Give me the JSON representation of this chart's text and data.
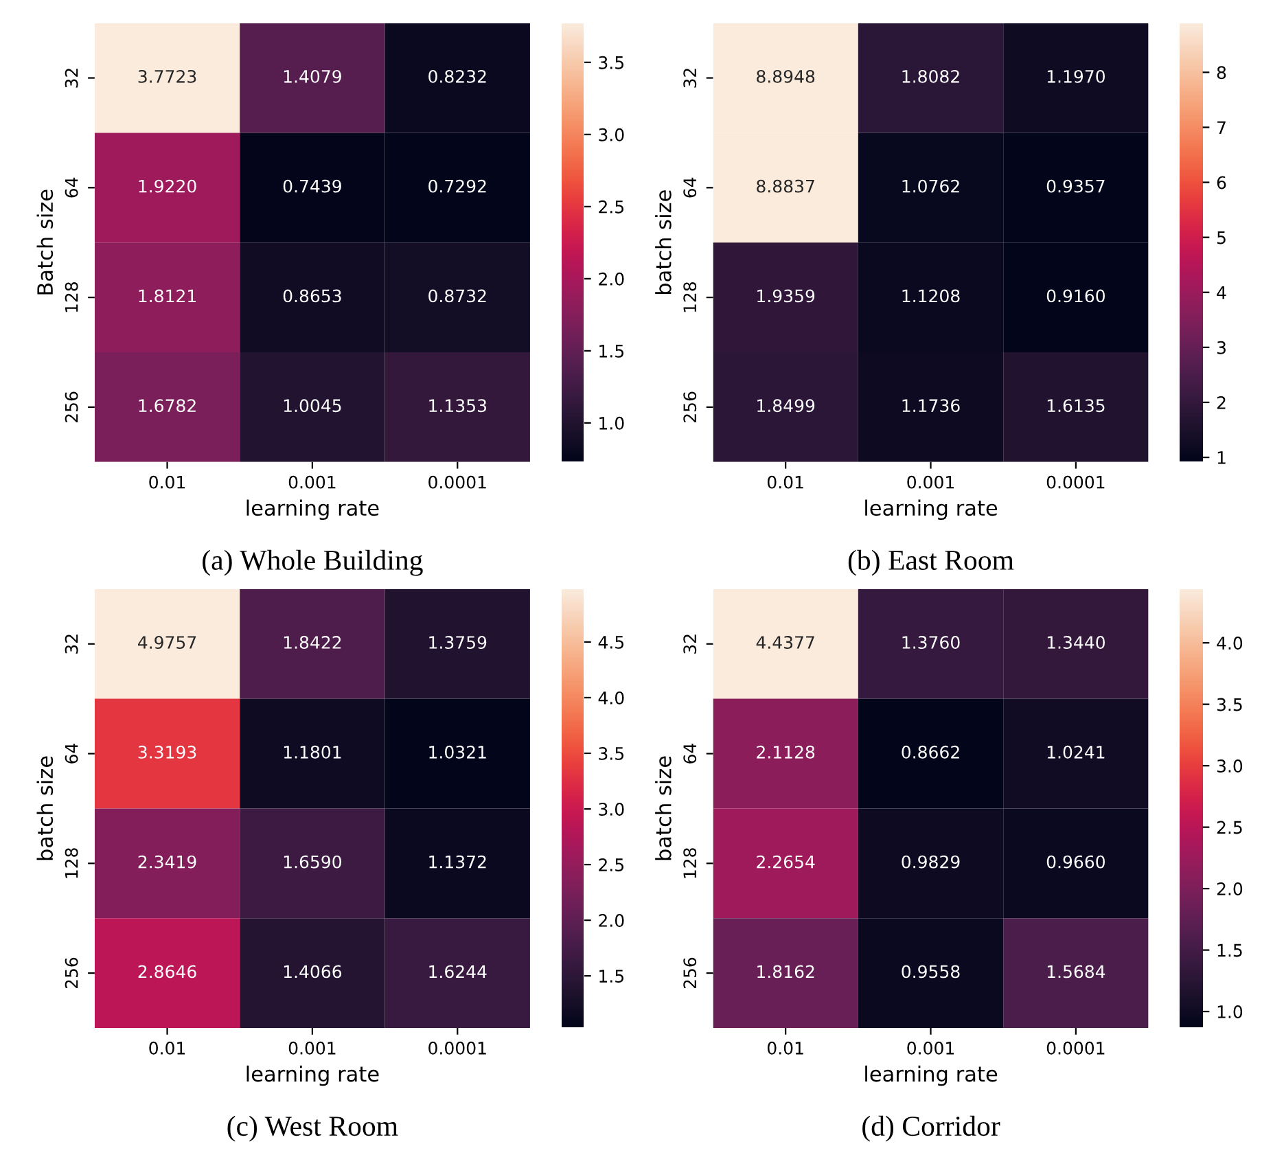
{
  "chart_data": [
    {
      "type": "heatmap",
      "title": "(a) Whole Building",
      "xlabel": "learning rate",
      "ylabel": "Batch size",
      "categories": [
        "0.01",
        "0.001",
        "0.0001"
      ],
      "y_categories": [
        "32",
        "64",
        "128",
        "256"
      ],
      "cells": [
        [
          3.7723,
          1.4079,
          0.8232
        ],
        [
          1.922,
          0.7439,
          0.7292
        ],
        [
          1.8121,
          0.8653,
          0.8732
        ],
        [
          1.6782,
          1.0045,
          1.1353
        ]
      ],
      "cell_labels": [
        [
          "3.7723",
          "1.4079",
          "0.8232"
        ],
        [
          "1.9220",
          "0.7439",
          "0.7292"
        ],
        [
          "1.8121",
          "0.8653",
          "0.8732"
        ],
        [
          "1.6782",
          "1.0045",
          "1.1353"
        ]
      ],
      "clim": [
        0.7292,
        3.7723
      ],
      "cticks": [
        {
          "value": 1,
          "label": "1.0"
        },
        1.5,
        {
          "value": 2,
          "label": "2.0"
        },
        2.5,
        {
          "value": 3,
          "label": "3.0"
        },
        3.5
      ]
    },
    {
      "type": "heatmap",
      "title": "(b) East Room",
      "xlabel": "learning rate",
      "ylabel": "batch size",
      "categories": [
        "0.01",
        "0.001",
        "0.0001"
      ],
      "y_categories": [
        "32",
        "64",
        "128",
        "256"
      ],
      "cells": [
        [
          8.8948,
          1.8082,
          1.197
        ],
        [
          8.8837,
          1.0762,
          0.9357
        ],
        [
          1.9359,
          1.1208,
          0.916
        ],
        [
          1.8499,
          1.1736,
          1.6135
        ]
      ],
      "cell_labels": [
        [
          "8.8948",
          "1.8082",
          "1.1970"
        ],
        [
          "8.8837",
          "1.0762",
          "0.9357"
        ],
        [
          "1.9359",
          "1.1208",
          "0.9160"
        ],
        [
          "1.8499",
          "1.1736",
          "1.6135"
        ]
      ],
      "clim": [
        0.916,
        8.8948
      ],
      "cticks": [
        1,
        2,
        3,
        4,
        5,
        6,
        7,
        8
      ]
    },
    {
      "type": "heatmap",
      "title": "(c) West Room",
      "xlabel": "learning rate",
      "ylabel": "batch size",
      "categories": [
        "0.01",
        "0.001",
        "0.0001"
      ],
      "y_categories": [
        "32",
        "64",
        "128",
        "256"
      ],
      "cells": [
        [
          4.9757,
          1.8422,
          1.3759
        ],
        [
          3.3193,
          1.1801,
          1.0321
        ],
        [
          2.3419,
          1.659,
          1.1372
        ],
        [
          2.8646,
          1.4066,
          1.6244
        ]
      ],
      "cell_labels": [
        [
          "4.9757",
          "1.8422",
          "1.3759"
        ],
        [
          "3.3193",
          "1.1801",
          "1.0321"
        ],
        [
          "2.3419",
          "1.6590",
          "1.1372"
        ],
        [
          "2.8646",
          "1.4066",
          "1.6244"
        ]
      ],
      "clim": [
        1.0321,
        4.9757
      ],
      "cticks": [
        1.5,
        {
          "value": 2,
          "label": "2.0"
        },
        2.5,
        {
          "value": 3,
          "label": "3.0"
        },
        3.5,
        {
          "value": 4,
          "label": "4.0"
        },
        4.5
      ]
    },
    {
      "type": "heatmap",
      "title": "(d) Corridor",
      "xlabel": "learning rate",
      "ylabel": "batch size",
      "categories": [
        "0.01",
        "0.001",
        "0.0001"
      ],
      "y_categories": [
        "32",
        "64",
        "128",
        "256"
      ],
      "cells": [
        [
          4.4377,
          1.376,
          1.344
        ],
        [
          2.1128,
          0.8662,
          1.0241
        ],
        [
          2.2654,
          0.9829,
          0.966
        ],
        [
          1.8162,
          0.9558,
          1.5684
        ]
      ],
      "cell_labels": [
        [
          "4.4377",
          "1.3760",
          "1.3440"
        ],
        [
          "2.1128",
          "0.8662",
          "1.0241"
        ],
        [
          "2.2654",
          "0.9829",
          "0.9660"
        ],
        [
          "1.8162",
          "0.9558",
          "1.5684"
        ]
      ],
      "clim": [
        0.8662,
        4.4377
      ],
      "cticks": [
        {
          "value": 1,
          "label": "1.0"
        },
        1.5,
        {
          "value": 2,
          "label": "2.0"
        },
        2.5,
        {
          "value": 3,
          "label": "3.0"
        },
        3.5,
        {
          "value": 4,
          "label": "4.0"
        }
      ]
    }
  ]
}
